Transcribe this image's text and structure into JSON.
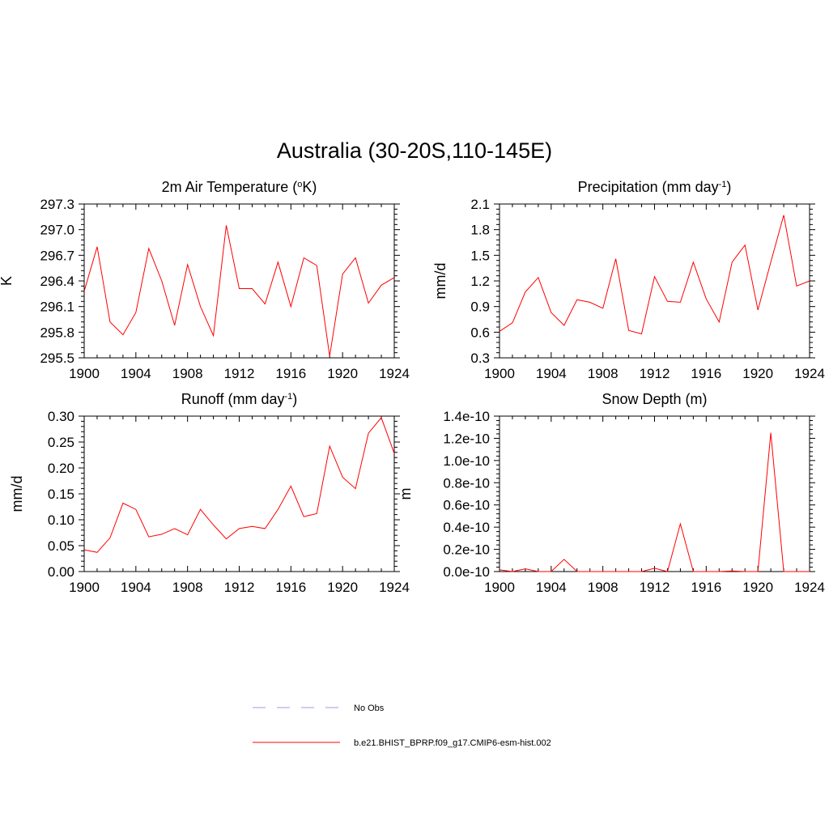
{
  "figure": {
    "title": "Australia (30-20S,110-145E)"
  },
  "legend": {
    "items": [
      {
        "label": "No Obs",
        "color": "#9a9af0",
        "style": "dashed"
      },
      {
        "label": "b.e21.BHIST_BPRP.f09_g17.CMIP6-esm-hist.002",
        "color": "#ff0000",
        "style": "solid"
      }
    ]
  },
  "chart_data": [
    {
      "type": "line",
      "title": "2m Air Temperature (°K)",
      "title_text": "2m Air Temperature (",
      "title_sup": "o",
      "title_tail": "K)",
      "ylabel": "K",
      "xlim": [
        1900,
        1924
      ],
      "ylim": [
        295.5,
        297.3
      ],
      "x_ticks": [
        "1900",
        "1904",
        "1908",
        "1912",
        "1916",
        "1920",
        "1924"
      ],
      "y_ticks": [
        "295.5",
        "295.8",
        "296.1",
        "296.4",
        "296.7",
        "297.0",
        "297.3"
      ],
      "series": [
        {
          "color": "#ff0000",
          "x": [
            1900,
            1901,
            1902,
            1903,
            1904,
            1905,
            1906,
            1907,
            1908,
            1909,
            1910,
            1911,
            1912,
            1913,
            1914,
            1915,
            1916,
            1917,
            1918,
            1919,
            1920,
            1921,
            1922,
            1923,
            1924
          ],
          "values": [
            296.28,
            296.8,
            295.92,
            295.77,
            296.03,
            296.78,
            296.4,
            295.88,
            296.59,
            296.1,
            295.76,
            297.05,
            296.31,
            296.31,
            296.13,
            296.62,
            296.1,
            296.67,
            296.58,
            295.52,
            296.48,
            296.67,
            296.14,
            296.35,
            296.44
          ]
        }
      ]
    },
    {
      "type": "line",
      "title": "Precipitation (mm day-1)",
      "title_text": "Precipitation (mm day",
      "title_sup": "-1",
      "title_tail": ")",
      "ylabel": "mm/d",
      "xlim": [
        1900,
        1924
      ],
      "ylim": [
        0.3,
        2.1
      ],
      "x_ticks": [
        "1900",
        "1904",
        "1908",
        "1912",
        "1916",
        "1920",
        "1924"
      ],
      "y_ticks": [
        "0.3",
        "0.6",
        "0.9",
        "1.2",
        "1.5",
        "1.8",
        "2.1"
      ],
      "series": [
        {
          "color": "#ff0000",
          "x": [
            1900,
            1901,
            1902,
            1903,
            1904,
            1905,
            1906,
            1907,
            1908,
            1909,
            1910,
            1911,
            1912,
            1913,
            1914,
            1915,
            1916,
            1917,
            1918,
            1919,
            1920,
            1921,
            1922,
            1923,
            1924
          ],
          "values": [
            0.61,
            0.71,
            1.07,
            1.24,
            0.83,
            0.68,
            0.98,
            0.95,
            0.88,
            1.46,
            0.62,
            0.58,
            1.25,
            0.96,
            0.95,
            1.42,
            0.99,
            0.72,
            1.42,
            1.62,
            0.86,
            1.42,
            1.97,
            1.14,
            1.2
          ]
        }
      ]
    },
    {
      "type": "line",
      "title": "Runoff (mm day-1)",
      "title_text": "Runoff (mm day",
      "title_sup": "-1",
      "title_tail": ")",
      "ylabel": "mm/d",
      "xlim": [
        1900,
        1924
      ],
      "ylim": [
        0.0,
        0.3
      ],
      "x_ticks": [
        "1900",
        "1904",
        "1908",
        "1912",
        "1916",
        "1920",
        "1924"
      ],
      "y_ticks": [
        "0.00",
        "0.05",
        "0.10",
        "0.15",
        "0.20",
        "0.25",
        "0.30"
      ],
      "series": [
        {
          "color": "#ff0000",
          "x": [
            1900,
            1901,
            1902,
            1903,
            1904,
            1905,
            1906,
            1907,
            1908,
            1909,
            1910,
            1911,
            1912,
            1913,
            1914,
            1915,
            1916,
            1917,
            1918,
            1919,
            1920,
            1921,
            1922,
            1923,
            1924
          ],
          "values": [
            0.042,
            0.037,
            0.065,
            0.132,
            0.12,
            0.067,
            0.072,
            0.083,
            0.071,
            0.12,
            0.09,
            0.063,
            0.083,
            0.087,
            0.083,
            0.12,
            0.165,
            0.106,
            0.112,
            0.242,
            0.182,
            0.16,
            0.267,
            0.297,
            0.228
          ]
        }
      ]
    },
    {
      "type": "line",
      "title": "Snow Depth (m)",
      "title_text": "Snow Depth (m)",
      "title_sup": "",
      "title_tail": "",
      "ylabel": "m",
      "xlim": [
        1900,
        1924
      ],
      "ylim": [
        0.0,
        1.4e-10
      ],
      "x_ticks": [
        "1900",
        "1904",
        "1908",
        "1912",
        "1916",
        "1920",
        "1924"
      ],
      "y_ticks": [
        "0.0e-10",
        "0.2e-10",
        "0.4e-10",
        "0.6e-10",
        "0.8e-10",
        "1.0e-10",
        "1.2e-10",
        "1.4e-10"
      ],
      "series": [
        {
          "color": "#ff0000",
          "x": [
            1900,
            1901,
            1902,
            1903,
            1904,
            1905,
            1906,
            1907,
            1908,
            1909,
            1910,
            1911,
            1912,
            1913,
            1914,
            1915,
            1916,
            1917,
            1918,
            1919,
            1920,
            1921,
            1922,
            1923,
            1924
          ],
          "values": [
            1.5e-12,
            0,
            2.5e-12,
            0,
            0,
            1.1e-11,
            0,
            0,
            0,
            0,
            0,
            0,
            3e-12,
            0,
            4.3e-11,
            0,
            0,
            0,
            5e-13,
            0,
            0,
            1.25e-10,
            0,
            0,
            0
          ]
        }
      ]
    }
  ]
}
